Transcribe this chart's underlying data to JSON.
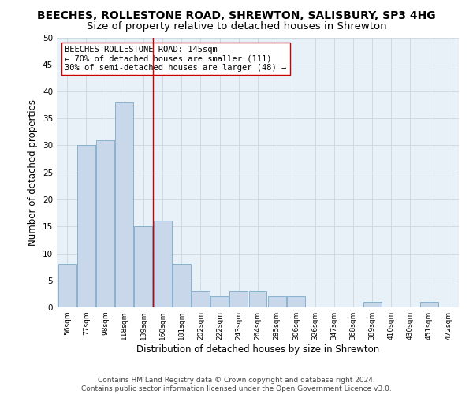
{
  "title": "BEECHES, ROLLESTONE ROAD, SHREWTON, SALISBURY, SP3 4HG",
  "subtitle": "Size of property relative to detached houses in Shrewton",
  "xlabel": "Distribution of detached houses by size in Shrewton",
  "ylabel": "Number of detached properties",
  "bar_color": "#c8d8ea",
  "bar_edge_color": "#7aaac8",
  "categories": [
    "56sqm",
    "77sqm",
    "98sqm",
    "118sqm",
    "139sqm",
    "160sqm",
    "181sqm",
    "202sqm",
    "222sqm",
    "243sqm",
    "264sqm",
    "285sqm",
    "306sqm",
    "326sqm",
    "347sqm",
    "368sqm",
    "389sqm",
    "410sqm",
    "430sqm",
    "451sqm",
    "472sqm"
  ],
  "values": [
    8,
    30,
    31,
    38,
    15,
    16,
    8,
    3,
    2,
    3,
    3,
    2,
    2,
    0,
    0,
    0,
    1,
    0,
    0,
    1,
    0
  ],
  "ylim": [
    0,
    50
  ],
  "yticks": [
    0,
    5,
    10,
    15,
    20,
    25,
    30,
    35,
    40,
    45,
    50
  ],
  "vline_x": 4.5,
  "vline_color": "#cc0000",
  "annotation_text": "BEECHES ROLLESTONE ROAD: 145sqm\n← 70% of detached houses are smaller (111)\n30% of semi-detached houses are larger (48) →",
  "annotation_box_color": "#ffffff",
  "annotation_box_edge": "#cc0000",
  "background_color": "#e8f0f8",
  "footer_text": "Contains HM Land Registry data © Crown copyright and database right 2024.\nContains public sector information licensed under the Open Government Licence v3.0.",
  "title_fontsize": 10,
  "subtitle_fontsize": 9.5,
  "xlabel_fontsize": 8.5,
  "ylabel_fontsize": 8.5,
  "annotation_fontsize": 7.5,
  "footer_fontsize": 6.5
}
